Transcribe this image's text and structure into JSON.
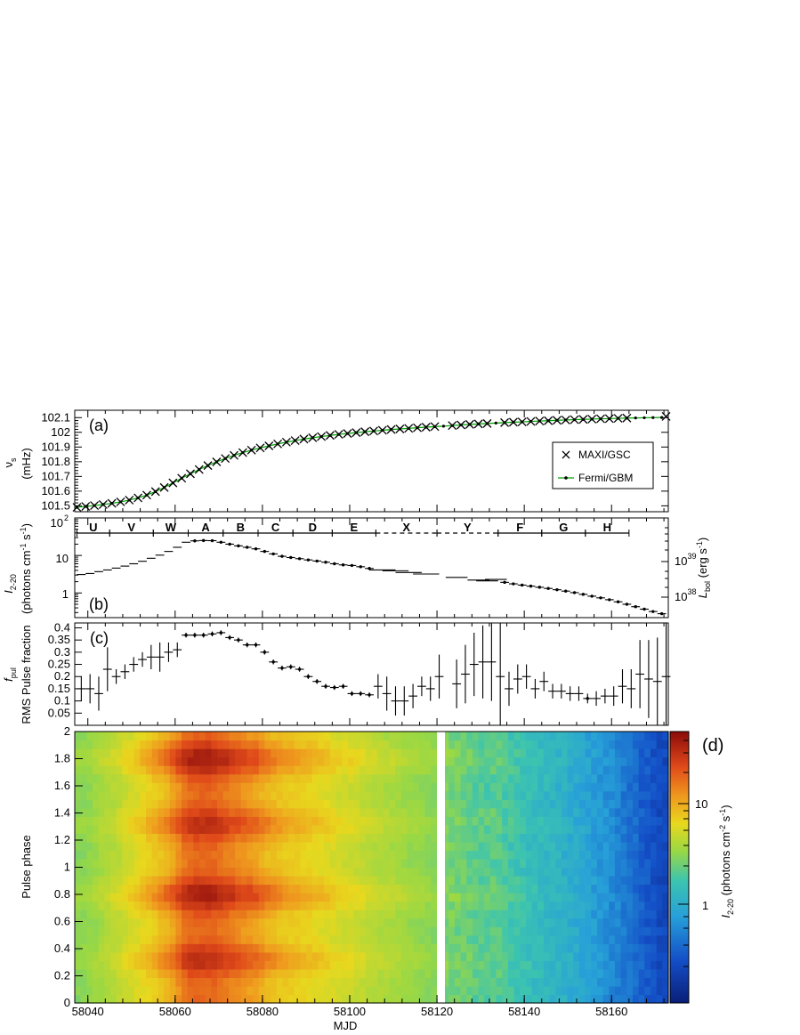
{
  "chart_data": [
    {
      "panel": "a",
      "type": "scatter",
      "panel_label": "(a)",
      "ylabel": "ν_s (mHz)",
      "ylabel_main": "ν",
      "ylabel_sub": "s",
      "ylabel_unit": "(mHz)",
      "xlim": [
        58037,
        58173
      ],
      "ylim": [
        101.46,
        102.15
      ],
      "yticks": [
        101.5,
        101.6,
        101.7,
        101.8,
        101.9,
        102.0,
        102.1
      ],
      "ytick_labels": [
        "101.5",
        "101.6",
        "101.7",
        "101.8",
        "101.9",
        "102",
        "102.1"
      ],
      "legend": {
        "position": "right",
        "entries": [
          "MAXI/GSC",
          "Fermi/GBM"
        ]
      },
      "series": [
        {
          "name": "MAXI/GSC",
          "marker": "x",
          "x": [
            58037.5,
            58039.5,
            58041.5,
            58043.5,
            58045.5,
            58047.5,
            58049.5,
            58051.5,
            58053.5,
            58055.5,
            58057.5,
            58059.5,
            58061.5,
            58063.5,
            58065.5,
            58067.5,
            58069.5,
            58071.5,
            58073.5,
            58075.5,
            58077.5,
            58079.5,
            58081.5,
            58083.5,
            58085.5,
            58087.5,
            58089.5,
            58091.5,
            58093.5,
            58095.5,
            58097.5,
            58099.5,
            58101.5,
            58103.5,
            58105.5,
            58107.5,
            58109.5,
            58111.5,
            58113.5,
            58115.5,
            58117.5,
            58119.5,
            58123.5,
            58125.5,
            58127.5,
            58129.5,
            58131.5,
            58135.5,
            58137.5,
            58139.5,
            58141.5,
            58143.5,
            58145.5,
            58147.5,
            58149.5,
            58151.5,
            58153.5,
            58155.5,
            58157.5,
            58159.5,
            58161.5,
            58163.5,
            58172.5
          ],
          "y": [
            101.49,
            101.496,
            101.502,
            101.509,
            101.517,
            101.527,
            101.539,
            101.554,
            101.573,
            101.597,
            101.625,
            101.656,
            101.688,
            101.718,
            101.747,
            101.774,
            101.799,
            101.822,
            101.843,
            101.862,
            101.879,
            101.894,
            101.908,
            101.921,
            101.933,
            101.944,
            101.954,
            101.963,
            101.971,
            101.979,
            101.986,
            101.992,
            101.998,
            102.004,
            102.009,
            102.014,
            102.019,
            102.023,
            102.027,
            102.031,
            102.035,
            102.039,
            102.046,
            102.05,
            102.054,
            102.057,
            102.06,
            102.066,
            102.069,
            102.071,
            102.074,
            102.077,
            102.079,
            102.082,
            102.084,
            102.086,
            102.088,
            102.09,
            102.092,
            102.093,
            102.095,
            102.097,
            102.108
          ]
        },
        {
          "name": "Fermi/GBM",
          "marker": "dot-line",
          "color": "#00a000",
          "x": [
            58037.5,
            58039.5,
            58041.5,
            58043.5,
            58045.5,
            58047.5,
            58049.5,
            58051.5,
            58053.5,
            58055.5,
            58057.5,
            58059.5,
            58061.5,
            58063.5,
            58065.5,
            58067.5,
            58069.5,
            58071.5,
            58073.5,
            58075.5,
            58077.5,
            58079.5,
            58081.5,
            58083.5,
            58085.5,
            58087.5,
            58089.5,
            58091.5,
            58093.5,
            58095.5,
            58097.5,
            58099.5,
            58101.5,
            58103.5,
            58105.5,
            58107.5,
            58109.5,
            58111.5,
            58113.5,
            58115.5,
            58117.5,
            58119.5,
            58121.5,
            58123.5,
            58125.5,
            58127.5,
            58129.5,
            58131.5,
            58133.5,
            58135.5,
            58137.5,
            58139.5,
            58141.5,
            58143.5,
            58145.5,
            58147.5,
            58149.5,
            58151.5,
            58153.5,
            58155.5,
            58157.5,
            58159.5,
            58161.5,
            58163.5,
            58165.5,
            58167.5,
            58169.5,
            58171.5
          ],
          "y": [
            101.49,
            101.496,
            101.502,
            101.509,
            101.517,
            101.527,
            101.539,
            101.554,
            101.573,
            101.597,
            101.625,
            101.656,
            101.688,
            101.718,
            101.747,
            101.774,
            101.799,
            101.822,
            101.843,
            101.862,
            101.879,
            101.894,
            101.908,
            101.921,
            101.933,
            101.944,
            101.954,
            101.963,
            101.971,
            101.979,
            101.986,
            101.992,
            101.998,
            102.004,
            102.009,
            102.014,
            102.019,
            102.023,
            102.027,
            102.031,
            102.035,
            102.039,
            102.042,
            102.046,
            102.05,
            102.054,
            102.057,
            102.06,
            102.063,
            102.066,
            102.069,
            102.071,
            102.074,
            102.077,
            102.079,
            102.082,
            102.084,
            102.086,
            102.088,
            102.09,
            102.092,
            102.093,
            102.095,
            102.097,
            102.098,
            102.099,
            102.1,
            102.101
          ]
        }
      ]
    },
    {
      "panel": "b",
      "type": "scatter",
      "panel_label": "(b)",
      "ylabel": "I_2-20 (photons cm^-1 s^-1)",
      "ylabel_main": "I",
      "ylabel_sub": "2-20",
      "ylabel_unit": "(photons cm",
      "ylabel_unit_sup": "-1",
      "ylabel_unit_tail": " s",
      "ylabel_unit_sup2": "-1",
      "ylabel_unit_end": ")",
      "y_scale": "log",
      "ylim": [
        0.22,
        100
      ],
      "ytick_labels": [
        "1",
        "10",
        "10"
      ],
      "ytick_sup": "2",
      "y2label": "L_bol (erg s^-1)",
      "y2label_main": "L",
      "y2label_sub": "bol",
      "y2label_unit": " (erg s",
      "y2label_unit_sup": "-1",
      "y2label_unit_end": ")",
      "y2tick_labels": [
        "10",
        "10"
      ],
      "y2tick_sups": [
        "38",
        "39"
      ],
      "intervals": [
        {
          "label": "U",
          "start": 58037.5,
          "end": 58045,
          "style": "solid"
        },
        {
          "label": "V",
          "start": 58045,
          "end": 58055,
          "style": "solid"
        },
        {
          "label": "W",
          "start": 58055,
          "end": 58063,
          "style": "solid"
        },
        {
          "label": "A",
          "start": 58063,
          "end": 58071,
          "style": "solid"
        },
        {
          "label": "B",
          "start": 58071,
          "end": 58079,
          "style": "solid"
        },
        {
          "label": "C",
          "start": 58079,
          "end": 58087,
          "style": "solid"
        },
        {
          "label": "D",
          "start": 58087,
          "end": 58096,
          "style": "solid"
        },
        {
          "label": "E",
          "start": 58096,
          "end": 58106,
          "style": "solid"
        },
        {
          "label": "X",
          "start": 58106,
          "end": 58120,
          "style": "dashed"
        },
        {
          "label": "Y",
          "start": 58120,
          "end": 58134,
          "style": "dashed"
        },
        {
          "label": "F",
          "start": 58134,
          "end": 58144,
          "style": "solid"
        },
        {
          "label": "G",
          "start": 58144,
          "end": 58154,
          "style": "solid"
        },
        {
          "label": "H",
          "start": 58154,
          "end": 58164,
          "style": "solid"
        }
      ],
      "x": [
        58038.5,
        58040.5,
        58042.5,
        58044.5,
        58046.5,
        58048.5,
        58050.5,
        58052.5,
        58054.5,
        58056.5,
        58058.5,
        58060.5,
        58062.5,
        58064.5,
        58066.5,
        58068.5,
        58070.5,
        58072.5,
        58074.5,
        58076.5,
        58078.5,
        58080.5,
        58082.5,
        58084.5,
        58086.5,
        58088.5,
        58090.5,
        58092.5,
        58094.5,
        58096.5,
        58098.5,
        58100.5,
        58102.5,
        58104.5,
        58107.5,
        58110.5,
        58113.5,
        58117.5,
        58124.5,
        58129.5,
        58131.5,
        58133.5,
        58135.5,
        58137.5,
        58139.5,
        58141.5,
        58143.5,
        58145.5,
        58147.5,
        58149.5,
        58151.5,
        58153.5,
        58155.5,
        58157.5,
        58159.5,
        58161.5,
        58163.5,
        58165.5,
        58167.5,
        58169.5,
        58171.5
      ],
      "y": [
        3.1,
        3.3,
        3.7,
        4.1,
        4.6,
        5.2,
        6.0,
        7.0,
        8.4,
        10.2,
        12.8,
        16.5,
        22.5,
        24.5,
        25.0,
        24.8,
        22.5,
        20.0,
        18.0,
        16.5,
        15.0,
        12.8,
        11.0,
        9.5,
        8.8,
        8.2,
        7.6,
        7.1,
        6.6,
        6.0,
        5.6,
        5.4,
        5.0,
        4.5,
        4.1,
        3.9,
        3.5,
        3.2,
        2.6,
        2.2,
        2.1,
        2.3,
        1.92,
        1.75,
        1.62,
        1.52,
        1.42,
        1.32,
        1.22,
        1.12,
        1.02,
        0.92,
        0.82,
        0.74,
        0.66,
        0.58,
        0.5,
        0.43,
        0.37,
        0.32,
        0.28
      ]
    },
    {
      "panel": "c",
      "type": "scatter",
      "panel_label": "(c)",
      "ylabel": "f_pul RMS Pulse fraction",
      "ylabel_main": "f",
      "ylabel_sub": "pul",
      "ylabel2": "RMS Pulse fraction",
      "ylim": [
        0.0,
        0.42
      ],
      "yticks": [
        0.05,
        0.1,
        0.15,
        0.2,
        0.25,
        0.3,
        0.35,
        0.4
      ],
      "ytick_labels": [
        "0.05",
        "0.1",
        "0.15",
        "0.2",
        "0.25",
        "0.3",
        "0.35",
        "0.4"
      ],
      "x": [
        58038.5,
        58040.5,
        58042.5,
        58044.5,
        58046.5,
        58048.5,
        58050.5,
        58052.5,
        58054.5,
        58056.5,
        58058.5,
        58060.5,
        58062.5,
        58064.5,
        58066.5,
        58068.5,
        58070.5,
        58072.5,
        58074.5,
        58076.5,
        58078.5,
        58080.5,
        58082.5,
        58084.5,
        58086.5,
        58088.5,
        58090.5,
        58092.5,
        58094.5,
        58096.5,
        58098.5,
        58100.5,
        58102.5,
        58104.5,
        58106.5,
        58108.5,
        58110.5,
        58112.5,
        58114.5,
        58116.5,
        58118.5,
        58120.5,
        58124.5,
        58126.5,
        58128.5,
        58130.5,
        58132.5,
        58134.5,
        58136.5,
        58138.5,
        58140.5,
        58142.5,
        58144.5,
        58146.5,
        58148.5,
        58150.5,
        58152.5,
        58154.5,
        58156.5,
        58158.5,
        58160.5,
        58162.5,
        58164.5,
        58166.5,
        58168.5,
        58170.5,
        58172.5
      ],
      "y": [
        0.15,
        0.15,
        0.13,
        0.23,
        0.2,
        0.22,
        0.25,
        0.27,
        0.28,
        0.28,
        0.3,
        0.31,
        0.37,
        0.37,
        0.37,
        0.375,
        0.38,
        0.36,
        0.35,
        0.33,
        0.33,
        0.3,
        0.26,
        0.235,
        0.24,
        0.23,
        0.2,
        0.18,
        0.16,
        0.155,
        0.16,
        0.13,
        0.13,
        0.125,
        0.16,
        0.13,
        0.1,
        0.1,
        0.12,
        0.16,
        0.15,
        0.2,
        0.17,
        0.21,
        0.25,
        0.26,
        0.26,
        0.2,
        0.15,
        0.19,
        0.2,
        0.15,
        0.18,
        0.14,
        0.14,
        0.13,
        0.13,
        0.11,
        0.11,
        0.12,
        0.12,
        0.16,
        0.15,
        0.21,
        0.19,
        0.18,
        0.2
      ],
      "yerr": [
        0.05,
        0.06,
        0.07,
        0.09,
        0.03,
        0.03,
        0.03,
        0.03,
        0.05,
        0.06,
        0.04,
        0.03,
        0.01,
        0.01,
        0.01,
        0.01,
        0.01,
        0.01,
        0.01,
        0.01,
        0.01,
        0.01,
        0.01,
        0.01,
        0.01,
        0.01,
        0.01,
        0.01,
        0.01,
        0.01,
        0.01,
        0.01,
        0.01,
        0.01,
        0.05,
        0.07,
        0.06,
        0.06,
        0.05,
        0.04,
        0.05,
        0.09,
        0.1,
        0.12,
        0.13,
        0.15,
        0.16,
        0.25,
        0.07,
        0.06,
        0.05,
        0.04,
        0.04,
        0.03,
        0.03,
        0.03,
        0.03,
        0.02,
        0.03,
        0.03,
        0.04,
        0.07,
        0.08,
        0.14,
        0.16,
        0.18,
        0.24
      ]
    },
    {
      "panel": "d",
      "type": "heatmap",
      "panel_label": "(d)",
      "xlabel": "MJD",
      "ylabel": "Pulse phase",
      "xticks": [
        58040,
        58060,
        58080,
        58100,
        58120,
        58140,
        58160
      ],
      "xtick_labels": [
        "58040",
        "58060",
        "58080",
        "58100",
        "58120",
        "58140",
        "58160"
      ],
      "yticks": [
        0,
        0.2,
        0.4,
        0.6,
        0.8,
        1,
        1.2,
        1.4,
        1.6,
        1.8,
        2
      ],
      "ytick_labels": [
        "0",
        "0.2",
        "0.4",
        "0.6",
        "0.8",
        "1",
        "1.2",
        "1.4",
        "1.6",
        "1.8",
        "2"
      ],
      "z_scale": "log",
      "zlabel": "I_2-20 (photons cm^-2 s^-1)",
      "zlabel_main": "I",
      "zlabel_sub": "2-20",
      "zlabel_unit": " (photons cm",
      "zlabel_unit_sup": "-2",
      "zlabel_unit_tail": " s",
      "zlabel_unit_sup2": "-1",
      "zlabel_unit_end": ")",
      "ztick_labels": [
        "1",
        "10"
      ],
      "gap": [
        58120.5,
        58122
      ],
      "phase_bins": 32,
      "mjd_bins": 100
    }
  ]
}
